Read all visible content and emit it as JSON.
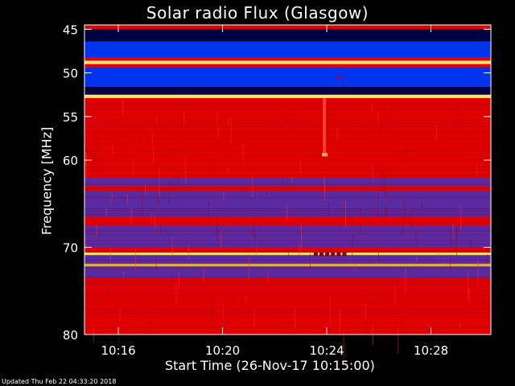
{
  "chart_data": {
    "type": "heatmap",
    "title": "Solar radio Flux (Glasgow)",
    "xlabel": "Start Time (26-Nov-17 10:15:00)",
    "ylabel": "Frequency [MHz]",
    "x_ticks": [
      "10:16",
      "10:20",
      "10:24",
      "10:28"
    ],
    "x_tick_minutes": [
      1,
      5,
      9,
      13
    ],
    "xlim_minutes": [
      -0.3,
      15.3
    ],
    "y_ticks": [
      45,
      50,
      55,
      60,
      70,
      80
    ],
    "ylim_mhz": [
      44.5,
      80
    ],
    "colormap": {
      "background": "#000000",
      "low": "#000040",
      "mid_low": "#0033ee",
      "mid": "#5a2aa0",
      "high": "#e00000",
      "peak": "#ffe070"
    },
    "bands": [
      {
        "from": 44.5,
        "to": 45.0,
        "level": "high"
      },
      {
        "from": 45.0,
        "to": 46.4,
        "level": "low"
      },
      {
        "from": 46.4,
        "to": 48.2,
        "level": "mid_low"
      },
      {
        "from": 48.2,
        "to": 48.6,
        "level": "high"
      },
      {
        "from": 48.6,
        "to": 49.0,
        "level": "peak"
      },
      {
        "from": 49.0,
        "to": 49.4,
        "level": "high"
      },
      {
        "from": 49.4,
        "to": 51.6,
        "level": "mid_low"
      },
      {
        "from": 51.6,
        "to": 52.5,
        "level": "low"
      },
      {
        "from": 52.5,
        "to": 52.9,
        "level": "peak"
      },
      {
        "from": 52.9,
        "to": 62.0,
        "level": "high"
      },
      {
        "from": 62.0,
        "to": 63.0,
        "level": "mid"
      },
      {
        "from": 63.0,
        "to": 63.5,
        "level": "high"
      },
      {
        "from": 63.5,
        "to": 66.5,
        "level": "mid"
      },
      {
        "from": 66.5,
        "to": 67.5,
        "level": "high"
      },
      {
        "from": 67.5,
        "to": 70.0,
        "level": "mid"
      },
      {
        "from": 70.0,
        "to": 70.6,
        "level": "high"
      },
      {
        "from": 70.6,
        "to": 70.9,
        "level": "peak"
      },
      {
        "from": 70.9,
        "to": 71.9,
        "level": "mid"
      },
      {
        "from": 71.9,
        "to": 72.2,
        "level": "peak"
      },
      {
        "from": 72.2,
        "to": 73.5,
        "level": "mid"
      },
      {
        "from": 73.5,
        "to": 80.0,
        "level": "high"
      }
    ]
  },
  "footer": {
    "updated": "Updated Thu Feb 22 04:33:20 2018"
  }
}
